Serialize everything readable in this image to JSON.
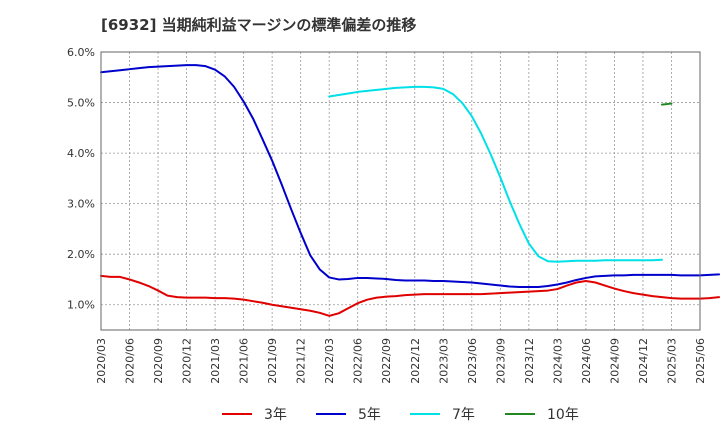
{
  "chart_data": {
    "type": "line",
    "title": "[6932]  当期純利益マージンの標準偏差の推移",
    "xlabel": "",
    "ylabel": "",
    "ylim": [
      0.5,
      6.0
    ],
    "y_ticks": [
      1.0,
      2.0,
      3.0,
      4.0,
      5.0,
      6.0
    ],
    "y_tick_labels": [
      "1.0%",
      "2.0%",
      "3.0%",
      "4.0%",
      "5.0%",
      "6.0%"
    ],
    "x_start": "2020-03",
    "x_end": "2025-06",
    "x_tick_labels": [
      "2020/03",
      "2020/06",
      "2020/09",
      "2020/12",
      "2021/03",
      "2021/06",
      "2021/09",
      "2021/12",
      "2022/03",
      "2022/06",
      "2022/09",
      "2022/12",
      "2023/03",
      "2023/06",
      "2023/09",
      "2023/12",
      "2024/03",
      "2024/06",
      "2024/09",
      "2024/12",
      "2025/03",
      "2025/06"
    ],
    "grid": true,
    "legend_position": "bottom",
    "series": [
      {
        "name": "3年",
        "color": "#e00000",
        "start": "2020-03",
        "values": [
          1.57,
          1.55,
          1.55,
          1.5,
          1.44,
          1.37,
          1.28,
          1.18,
          1.15,
          1.14,
          1.14,
          1.14,
          1.13,
          1.13,
          1.12,
          1.1,
          1.07,
          1.04,
          1.0,
          0.97,
          0.94,
          0.91,
          0.88,
          0.84,
          0.78,
          0.83,
          0.93,
          1.03,
          1.1,
          1.14,
          1.16,
          1.17,
          1.19,
          1.2,
          1.21,
          1.21,
          1.21,
          1.21,
          1.21,
          1.21,
          1.21,
          1.22,
          1.23,
          1.24,
          1.25,
          1.26,
          1.27,
          1.28,
          1.31,
          1.38,
          1.44,
          1.47,
          1.44,
          1.38,
          1.32,
          1.27,
          1.23,
          1.2,
          1.17,
          1.15,
          1.13,
          1.12,
          1.12,
          1.12,
          1.13,
          1.15
        ]
      },
      {
        "name": "5年",
        "color": "#0000cc",
        "start": "2020-03",
        "values": [
          5.6,
          5.62,
          5.64,
          5.66,
          5.68,
          5.7,
          5.71,
          5.72,
          5.73,
          5.74,
          5.74,
          5.72,
          5.65,
          5.52,
          5.31,
          5.02,
          4.68,
          4.27,
          3.85,
          3.38,
          2.89,
          2.42,
          1.98,
          1.7,
          1.54,
          1.5,
          1.51,
          1.53,
          1.53,
          1.52,
          1.51,
          1.49,
          1.48,
          1.48,
          1.48,
          1.47,
          1.47,
          1.46,
          1.45,
          1.44,
          1.42,
          1.4,
          1.38,
          1.36,
          1.35,
          1.35,
          1.35,
          1.37,
          1.4,
          1.44,
          1.49,
          1.53,
          1.56,
          1.57,
          1.58,
          1.58,
          1.59,
          1.59,
          1.59,
          1.59,
          1.59,
          1.58,
          1.58,
          1.58,
          1.59,
          1.6
        ]
      },
      {
        "name": "7年",
        "color": "#00e0e8",
        "start": "2022-03",
        "values": [
          5.12,
          5.15,
          5.18,
          5.21,
          5.23,
          5.25,
          5.27,
          5.29,
          5.3,
          5.31,
          5.31,
          5.3,
          5.27,
          5.17,
          4.99,
          4.73,
          4.38,
          3.97,
          3.52,
          3.04,
          2.6,
          2.21,
          1.96,
          1.86,
          1.85,
          1.86,
          1.87,
          1.87,
          1.87,
          1.88,
          1.88,
          1.88,
          1.88,
          1.88,
          1.88,
          1.89
        ]
      },
      {
        "name": "10年",
        "color": "#228822",
        "start": "2025-02",
        "values": [
          4.96,
          4.98
        ]
      }
    ]
  }
}
